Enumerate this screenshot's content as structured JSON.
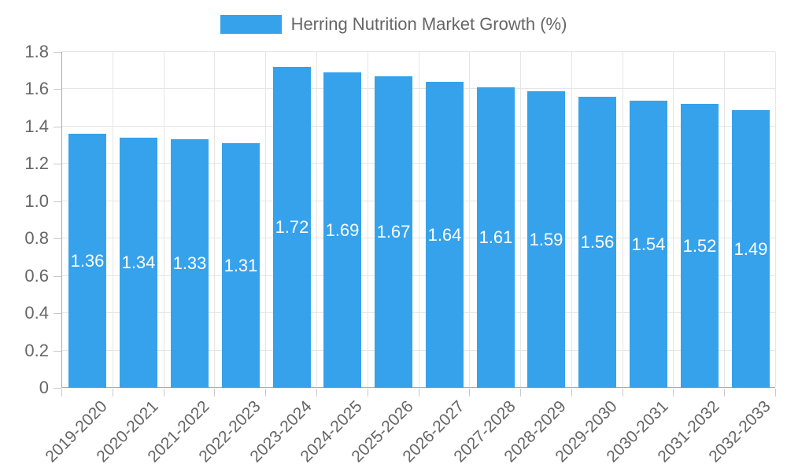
{
  "legend": {
    "series_label": "Herring Nutrition Market Growth (%)",
    "swatch_color": "#36A2EB"
  },
  "chart_data": {
    "type": "bar",
    "title": "Herring Nutrition Market Growth (%)",
    "categories": [
      "2019-2020",
      "2020-2021",
      "2021-2022",
      "2022-2023",
      "2023-2024",
      "2024-2025",
      "2025-2026",
      "2026-2027",
      "2027-2028",
      "2028-2029",
      "2029-2030",
      "2030-2031",
      "2031-2032",
      "2032-2033"
    ],
    "values": [
      1.36,
      1.34,
      1.33,
      1.31,
      1.72,
      1.69,
      1.67,
      1.64,
      1.61,
      1.59,
      1.56,
      1.54,
      1.52,
      1.49
    ],
    "value_labels": [
      "1.36",
      "1.34",
      "1.33",
      "1.31",
      "1.72",
      "1.69",
      "1.67",
      "1.64",
      "1.61",
      "1.59",
      "1.56",
      "1.54",
      "1.52",
      "1.49"
    ],
    "xlabel": "",
    "ylabel": "",
    "ylim": [
      0,
      1.8
    ],
    "yticks": [
      "0",
      "0.2",
      "0.4",
      "0.6",
      "0.8",
      "1.0",
      "1.2",
      "1.4",
      "1.6",
      "1.8"
    ],
    "grid": true,
    "legend_position": "top-center",
    "colors": {
      "bar": "#36A2EB",
      "bar_value_text": "#FFFFFF",
      "axis_text": "#666666",
      "grid_line": "#E6E6E6",
      "axis_line": "#ABABAB",
      "tick_mark": "#C9C9C9",
      "background": "#FFFFFF"
    }
  }
}
